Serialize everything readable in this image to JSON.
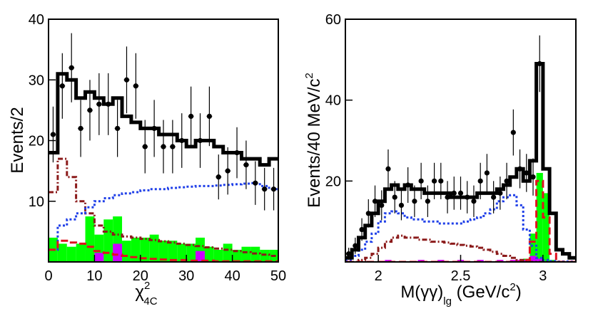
{
  "chart_data": [
    {
      "type": "histogram",
      "xlabel_main": "χ",
      "xlabel_sup": "2",
      "xlabel_sub": "4C",
      "ylabel": "Events/2",
      "xlim": [
        0,
        50
      ],
      "ylim": [
        0,
        40
      ],
      "xticks": [
        0,
        10,
        20,
        30,
        40,
        50
      ],
      "yticks": [
        10,
        20,
        30,
        40
      ],
      "bin_edges": [
        0,
        2,
        4,
        6,
        8,
        10,
        12,
        14,
        16,
        18,
        20,
        22,
        24,
        26,
        28,
        30,
        32,
        34,
        36,
        38,
        40,
        42,
        44,
        46,
        48,
        50
      ],
      "data_points": {
        "name": "data",
        "x": [
          1,
          3,
          5,
          7,
          9,
          11,
          13,
          15,
          17,
          19,
          21,
          23,
          25,
          27,
          29,
          31,
          33,
          35,
          37,
          39,
          41,
          43,
          45,
          47,
          49
        ],
        "y": [
          21,
          29,
          32,
          22,
          25,
          26,
          26,
          22,
          30,
          29,
          19,
          22,
          19,
          19,
          20,
          24,
          20,
          24,
          14,
          15,
          18,
          16,
          13,
          12,
          12
        ],
        "err": [
          4.6,
          5.4,
          5.7,
          4.7,
          5.0,
          5.1,
          5.1,
          4.7,
          5.5,
          5.4,
          4.4,
          4.7,
          4.4,
          4.4,
          4.5,
          4.9,
          4.5,
          4.9,
          3.7,
          3.9,
          4.2,
          4.0,
          3.6,
          3.5,
          3.5
        ]
      },
      "series": [
        {
          "name": "total fit",
          "style": "solid-black-step",
          "color": "#000000",
          "values": [
            18,
            31,
            30,
            27,
            28,
            27,
            26,
            27,
            24,
            23,
            22,
            22,
            21,
            21,
            20,
            19,
            20,
            20,
            19,
            18,
            18,
            17,
            17,
            16,
            17
          ]
        },
        {
          "name": "background-blue",
          "style": "dotted",
          "color": "#1f3fe8",
          "values": [
            2,
            6,
            7,
            8,
            9,
            10,
            10.5,
            11,
            11.3,
            11.5,
            11.8,
            12,
            12,
            12.2,
            12.3,
            12.4,
            12.5,
            12.5,
            12.6,
            12.7,
            12.8,
            12.9,
            13,
            12.5,
            12
          ]
        },
        {
          "name": "background-darkred",
          "style": "dash-dot",
          "color": "#8b1a1a",
          "values": [
            11.5,
            17,
            14,
            10,
            8,
            6,
            5,
            4.5,
            4.2,
            4,
            3.8,
            3.6,
            3.4,
            3.2,
            3.0,
            2.8,
            2.6,
            2.4,
            2.2,
            2.0,
            1.8,
            1.6,
            1.4,
            1.2,
            1.0
          ]
        },
        {
          "name": "background-red",
          "style": "dashed",
          "color": "#e0101e",
          "values": [
            2,
            3.5,
            3.2,
            3,
            2.5,
            1.8,
            1.5,
            1.2,
            1,
            0.8,
            0.6,
            0.5,
            0.4,
            0.3,
            0.3,
            0.2,
            0.2,
            0.2,
            0.1,
            0.1,
            0.1,
            0.1,
            0.1,
            0.1,
            0.1
          ]
        },
        {
          "name": "background-green",
          "style": "filled",
          "color": "#00ff00",
          "values": [
            4,
            3,
            2.5,
            3,
            7.5,
            4.5,
            7,
            7.5,
            3.5,
            4,
            4,
            4.5,
            3.5,
            3.5,
            3,
            3,
            4,
            2.5,
            2,
            3,
            2,
            2.5,
            2.5,
            2,
            2
          ]
        },
        {
          "name": "background-magenta",
          "style": "filled",
          "color": "#cc00ff",
          "values": [
            0,
            0,
            0,
            0,
            0,
            1.5,
            0,
            3,
            0,
            0,
            0,
            0,
            0,
            0,
            0,
            0,
            1.8,
            0,
            0,
            0,
            0,
            0,
            0,
            0,
            0
          ]
        }
      ]
    },
    {
      "type": "histogram",
      "xlabel_main": "M(γγ)",
      "xlabel_sub": "lg",
      "xlabel_unit": " (GeV/c",
      "xlabel_unit_sup": "2",
      "xlabel_unit_close": ")",
      "ylabel_main": "Events/40 MeV/c",
      "ylabel_sup": "2",
      "xlim": [
        1.8,
        3.2
      ],
      "ylim": [
        0,
        60
      ],
      "xticks": [
        2,
        2.5,
        3
      ],
      "xtick_labels": [
        "2",
        "2.5",
        "3"
      ],
      "yticks": [
        20,
        40,
        60
      ],
      "bin_edges": [
        1.8,
        1.84,
        1.88,
        1.92,
        1.96,
        2.0,
        2.04,
        2.08,
        2.12,
        2.16,
        2.2,
        2.24,
        2.28,
        2.32,
        2.36,
        2.4,
        2.44,
        2.48,
        2.52,
        2.56,
        2.6,
        2.64,
        2.68,
        2.72,
        2.76,
        2.8,
        2.84,
        2.88,
        2.92,
        2.96,
        3.0,
        3.04,
        3.08,
        3.12,
        3.16,
        3.2
      ],
      "data_points": {
        "name": "data",
        "x": [
          1.82,
          1.86,
          1.9,
          1.94,
          1.98,
          2.02,
          2.06,
          2.1,
          2.14,
          2.18,
          2.22,
          2.26,
          2.3,
          2.34,
          2.38,
          2.42,
          2.46,
          2.5,
          2.54,
          2.58,
          2.62,
          2.66,
          2.7,
          2.74,
          2.78,
          2.82,
          2.86,
          2.9,
          2.94,
          2.98
        ],
        "y": [
          2,
          4,
          8,
          12,
          15,
          14,
          23,
          16,
          14,
          19,
          15,
          20,
          15,
          20,
          20,
          16,
          17,
          17,
          16,
          15,
          20,
          22,
          16,
          17,
          20,
          32,
          23,
          22,
          21,
          49
        ],
        "err": [
          1.5,
          2,
          2.8,
          3.5,
          3.9,
          3.7,
          4.8,
          4,
          3.7,
          4.4,
          3.9,
          4.5,
          3.9,
          4.5,
          4.5,
          4,
          4.1,
          4.1,
          4,
          3.9,
          4.5,
          4.7,
          4,
          4.1,
          4.5,
          5.7,
          4.8,
          4.7,
          4.6,
          7
        ]
      },
      "series": [
        {
          "name": "total fit",
          "style": "solid-black-step",
          "color": "#000000",
          "values": [
            1,
            3,
            6,
            9,
            12,
            15,
            18,
            19,
            18,
            19,
            18,
            18,
            17,
            17,
            17,
            17,
            16,
            16,
            16,
            16,
            17,
            17,
            17,
            18,
            19,
            21,
            23,
            20,
            25,
            49,
            23,
            12,
            3,
            2,
            1
          ]
        },
        {
          "name": "background-blue",
          "style": "dotted",
          "color": "#1f3fe8",
          "values": [
            0.5,
            1.5,
            3,
            5,
            7,
            10,
            12,
            12.5,
            12,
            11,
            10.5,
            10.5,
            10,
            10,
            9.5,
            9.5,
            9.5,
            9.5,
            10,
            10.5,
            11,
            12,
            13,
            15,
            16,
            16.5,
            14,
            8,
            4,
            1,
            0.5,
            0.2,
            0.1,
            0.1,
            0.1
          ]
        },
        {
          "name": "background-darkred",
          "style": "dash-dot",
          "color": "#8b1a1a",
          "values": [
            0,
            0,
            0.5,
            1,
            2,
            3.5,
            5,
            6,
            6.5,
            6,
            6,
            5.5,
            5.5,
            5,
            5,
            4.8,
            4.5,
            4.2,
            4,
            3.8,
            3.5,
            3,
            2.5,
            2,
            1.5,
            1,
            0.5,
            0.2,
            0,
            0,
            0,
            0,
            0,
            0,
            0
          ]
        },
        {
          "name": "background-red",
          "style": "dashed",
          "color": "#e0101e",
          "values": [
            0,
            0,
            0,
            0,
            0,
            0,
            0,
            0,
            0,
            0,
            0,
            0,
            0,
            0,
            0,
            0,
            0,
            0,
            0,
            0,
            0,
            0,
            0,
            0,
            0,
            0,
            0,
            0.5,
            5,
            20,
            11,
            2,
            0,
            0,
            0
          ]
        },
        {
          "name": "background-green",
          "style": "filled",
          "color": "#00ff00",
          "values": [
            0,
            0,
            0,
            0,
            0,
            0,
            0,
            0,
            0,
            0,
            0,
            0,
            0,
            0,
            0,
            0,
            0,
            0,
            0,
            0,
            0,
            0,
            0,
            0,
            0,
            0,
            0,
            0.8,
            7,
            22,
            17,
            0.5,
            0,
            0,
            0
          ]
        },
        {
          "name": "background-magenta",
          "style": "filled",
          "color": "#cc00ff",
          "values": [
            0,
            0,
            0,
            0,
            0,
            0,
            0.5,
            0,
            0,
            0,
            0,
            0.5,
            0,
            0,
            0.5,
            0,
            0,
            0.5,
            0,
            0,
            0.5,
            0,
            0,
            0.5,
            0,
            0.5,
            0.5,
            0.5,
            1.5,
            0.8,
            0,
            0,
            0,
            0,
            0
          ]
        }
      ]
    }
  ]
}
